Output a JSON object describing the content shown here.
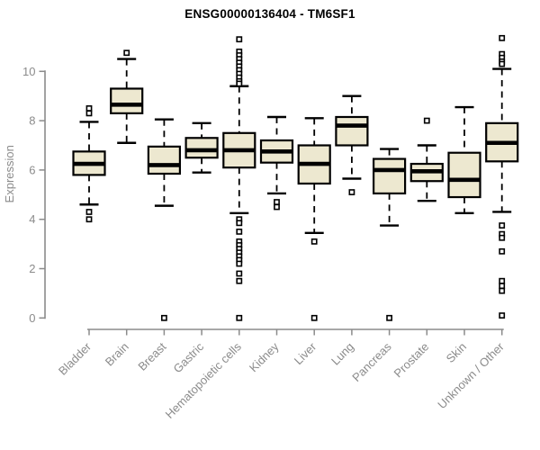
{
  "figure": {
    "title": "ENSG00000136404 - TM6SF1"
  },
  "chart_data": {
    "type": "boxplot",
    "title": "ENSG00000136404 - TM6SF1",
    "xlabel": "",
    "ylabel": "Expression",
    "ylim": [
      -0.5,
      11.6
    ],
    "yticks": [
      0,
      2,
      4,
      6,
      8,
      10
    ],
    "grid": false,
    "legend": "none",
    "categories": [
      "Bladder",
      "Brain",
      "Breast",
      "Gastric",
      "Hematopoietic cells",
      "Kidney",
      "Liver",
      "Lung",
      "Pancreas",
      "Prostate",
      "Skin",
      "Unknown / Other"
    ],
    "series": [
      {
        "name": "Bladder",
        "whisker_low": 4.6,
        "q1": 5.8,
        "median": 6.25,
        "q3": 6.75,
        "whisker_high": 7.95,
        "outliers": [
          8.5,
          8.3,
          4.3,
          4.0
        ]
      },
      {
        "name": "Brain",
        "whisker_low": 7.1,
        "q1": 8.3,
        "median": 8.65,
        "q3": 9.3,
        "whisker_high": 10.5,
        "outliers": [
          10.75
        ]
      },
      {
        "name": "Breast",
        "whisker_low": 4.55,
        "q1": 5.85,
        "median": 6.2,
        "q3": 6.95,
        "whisker_high": 8.05,
        "outliers": [
          0
        ]
      },
      {
        "name": "Gastric",
        "whisker_low": 5.9,
        "q1": 6.5,
        "median": 6.8,
        "q3": 7.3,
        "whisker_high": 7.9,
        "outliers": []
      },
      {
        "name": "Hematopoietic cells",
        "whisker_low": 4.25,
        "q1": 6.1,
        "median": 6.8,
        "q3": 7.5,
        "whisker_high": 9.4,
        "outliers": [
          11.3,
          10.8,
          10.65,
          10.5,
          10.35,
          10.2,
          10.05,
          9.9,
          9.75,
          9.6,
          9.5,
          4.0,
          3.85,
          3.5,
          3.1,
          2.95,
          2.8,
          2.65,
          2.5,
          2.35,
          2.2,
          1.8,
          1.5,
          0
        ]
      },
      {
        "name": "Kidney",
        "whisker_low": 5.05,
        "q1": 6.3,
        "median": 6.75,
        "q3": 7.2,
        "whisker_high": 8.15,
        "outliers": [
          4.7,
          4.5
        ]
      },
      {
        "name": "Liver",
        "whisker_low": 3.45,
        "q1": 5.45,
        "median": 6.25,
        "q3": 7.0,
        "whisker_high": 8.1,
        "outliers": [
          3.1,
          0
        ]
      },
      {
        "name": "Lung",
        "whisker_low": 5.65,
        "q1": 7.0,
        "median": 7.8,
        "q3": 8.15,
        "whisker_high": 9.0,
        "outliers": [
          5.1
        ]
      },
      {
        "name": "Pancreas",
        "whisker_low": 3.75,
        "q1": 5.05,
        "median": 6.0,
        "q3": 6.45,
        "whisker_high": 6.85,
        "outliers": [
          0
        ]
      },
      {
        "name": "Prostate",
        "whisker_low": 4.75,
        "q1": 5.55,
        "median": 5.95,
        "q3": 6.25,
        "whisker_high": 7.0,
        "outliers": [
          8.0
        ]
      },
      {
        "name": "Skin",
        "whisker_low": 4.25,
        "q1": 4.9,
        "median": 5.6,
        "q3": 6.7,
        "whisker_high": 8.55,
        "outliers": []
      },
      {
        "name": "Unknown / Other",
        "whisker_low": 4.3,
        "q1": 6.35,
        "median": 7.1,
        "q3": 7.9,
        "whisker_high": 10.1,
        "outliers": [
          11.35,
          10.7,
          10.55,
          10.4,
          10.3,
          3.75,
          3.4,
          3.25,
          2.7,
          1.5,
          1.3,
          1.1,
          0.1
        ]
      }
    ],
    "colors": {
      "box_fill": "#EDE8D0",
      "box_stroke": "#000000",
      "median": "#000000",
      "whisker": "#000000",
      "outlier_stroke": "#000000",
      "outlier_fill": "#FFFFFF",
      "axis": "#8B8B8B",
      "tick_label": "#8B8B8B",
      "axis_title": "#8B8B8B",
      "title": "#000000",
      "background": "#FFFFFF"
    }
  }
}
